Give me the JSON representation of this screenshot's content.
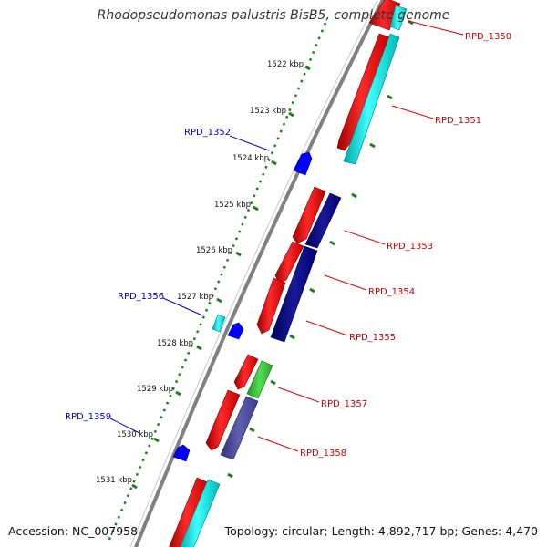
{
  "title": "Rhodopseudomonas palustris BisB5, complete genome",
  "footer": {
    "accession": "Accession: NC_007958",
    "summary": "Topology: circular; Length: 4,892,717 bp; Genes: 4,470"
  },
  "tick_labels": [
    "1522 kbp",
    "1523 kbp",
    "1524 kbp",
    "1525 kbp",
    "1526 kbp",
    "1527 kbp",
    "1528 kbp",
    "1529 kbp",
    "1530 kbp",
    "1531 kbp"
  ],
  "gene_labels_red": [
    "RPD_1350",
    "RPD_1351",
    "RPD_1353",
    "RPD_1354",
    "RPD_1355",
    "RPD_1357",
    "RPD_1358"
  ],
  "gene_labels_blue": [
    "RPD_1352",
    "RPD_1356",
    "RPD_1359"
  ],
  "colors": {
    "backbone": "#808080",
    "cds": "#ff0000",
    "cds_cyan": "#00ffff",
    "cds_navy": "#000080",
    "cds_green": "#33cc33",
    "cds_slate": "#4a4a9a",
    "gene_blue": "#0000ff",
    "tick_green": "#1a7f1a",
    "label_red": "#cc0000",
    "label_blue": "#0000cc"
  }
}
